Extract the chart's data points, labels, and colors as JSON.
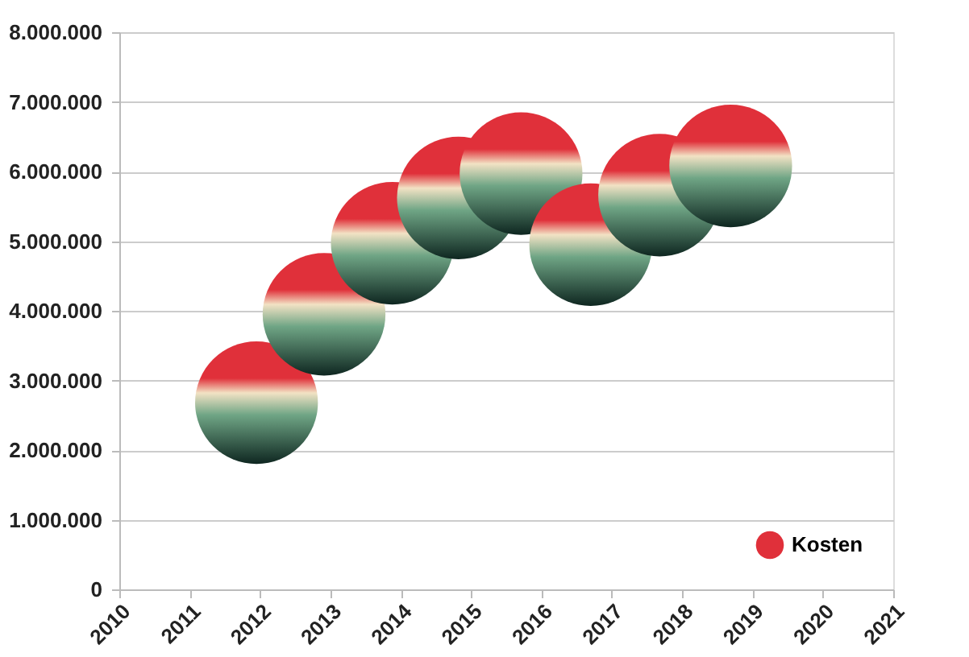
{
  "chart_data": {
    "type": "bubble",
    "x": [
      2011.95,
      2012.91,
      2013.88,
      2014.82,
      2015.71,
      2016.7,
      2017.68,
      2018.69
    ],
    "series": [
      {
        "name": "Kosten",
        "color": "#e0303a",
        "values": [
          2680000,
          3950000,
          4970000,
          5620000,
          5970000,
          4950000,
          5660000,
          6080000
        ],
        "sizes": [
          1,
          1,
          1,
          1,
          1,
          1,
          1,
          1
        ]
      }
    ],
    "xlim": [
      2010,
      2021
    ],
    "xticks": [
      2010,
      2011,
      2012,
      2013,
      2014,
      2015,
      2016,
      2017,
      2018,
      2019,
      2020,
      2021
    ],
    "ylim": [
      0,
      8000000
    ],
    "yticks": [
      {
        "value": 0,
        "label": "0"
      },
      {
        "value": 1000000,
        "label": "1.000.000"
      },
      {
        "value": 2000000,
        "label": "2.000.000"
      },
      {
        "value": 3000000,
        "label": "3.000.000"
      },
      {
        "value": 4000000,
        "label": "4.000.000"
      },
      {
        "value": 5000000,
        "label": "5.000.000"
      },
      {
        "value": 6000000,
        "label": "6.000.000"
      },
      {
        "value": 7000000,
        "label": "7.000.000"
      },
      {
        "value": 8000000,
        "label": "8.000.000"
      }
    ],
    "grid": "y",
    "legend": "bottom right"
  }
}
